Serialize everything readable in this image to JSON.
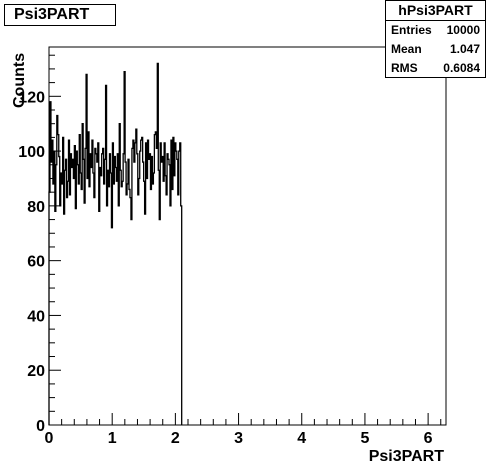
{
  "canvas_title": "Psi3PART",
  "stats": {
    "name": "hPsi3PART",
    "rows": [
      {
        "label": "Entries",
        "value": "10000"
      },
      {
        "label": "Mean",
        "value": "1.047"
      },
      {
        "label": "RMS",
        "value": "0.6084"
      }
    ]
  },
  "chart_data": {
    "type": "histogram",
    "xlabel": "Psi3PART",
    "ylabel": "Counts",
    "xlim": [
      0,
      6.283
    ],
    "ylim": [
      0,
      138
    ],
    "x_ticks": [
      0,
      1,
      2,
      3,
      4,
      5,
      6
    ],
    "y_ticks": [
      0,
      20,
      40,
      60,
      80,
      100,
      120
    ],
    "bin_width": 0.0157,
    "fill_range": [
      0,
      2.1
    ],
    "values": [
      85,
      118,
      96,
      104,
      88,
      100,
      78,
      95,
      113,
      106,
      98,
      80,
      92,
      88,
      105,
      77,
      93,
      97,
      83,
      89,
      104,
      84,
      99,
      94,
      97,
      90,
      102,
      79,
      100,
      95,
      88,
      106,
      92,
      86,
      110,
      97,
      81,
      101,
      128,
      90,
      107,
      87,
      99,
      94,
      104,
      92,
      83,
      101,
      99,
      96,
      103,
      78,
      94,
      91,
      99,
      101,
      88,
      97,
      124,
      80,
      93,
      87,
      99,
      92,
      72,
      103,
      88,
      98,
      94,
      89,
      99,
      80,
      110,
      93,
      87,
      89,
      99,
      129,
      96,
      84,
      88,
      97,
      86,
      83,
      75,
      101,
      104,
      96,
      103,
      108,
      99,
      84,
      90,
      100,
      104,
      105,
      96,
      89,
      77,
      103,
      90,
      104,
      97,
      99,
      86,
      98,
      88,
      92,
      106,
      107,
      101,
      132,
      93,
      75,
      103,
      96,
      98,
      89,
      103,
      91,
      84,
      99,
      97,
      95,
      80,
      104,
      86,
      105,
      91,
      103,
      100,
      97,
      84,
      100,
      103,
      80
    ]
  }
}
